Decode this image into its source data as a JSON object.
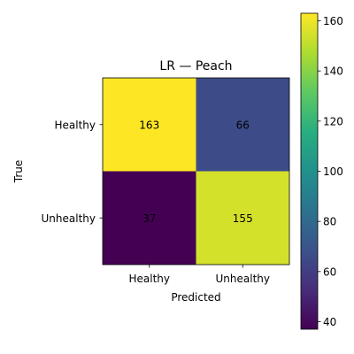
{
  "chart_data": {
    "type": "heatmap",
    "title": "LR — Peach",
    "xlabel": "Predicted",
    "ylabel": "True",
    "x_categories": [
      "Healthy",
      "Unhealthy"
    ],
    "y_categories": [
      "Healthy",
      "Unhealthy"
    ],
    "values": [
      [
        163,
        66
      ],
      [
        37,
        155
      ]
    ],
    "colormap": "viridis",
    "colorbar": {
      "vmin": 37,
      "vmax": 163,
      "ticks": [
        40,
        60,
        80,
        100,
        120,
        140,
        160
      ],
      "tick_labels": [
        "40",
        "60",
        "80",
        "100",
        "120",
        "140",
        "160"
      ]
    }
  }
}
